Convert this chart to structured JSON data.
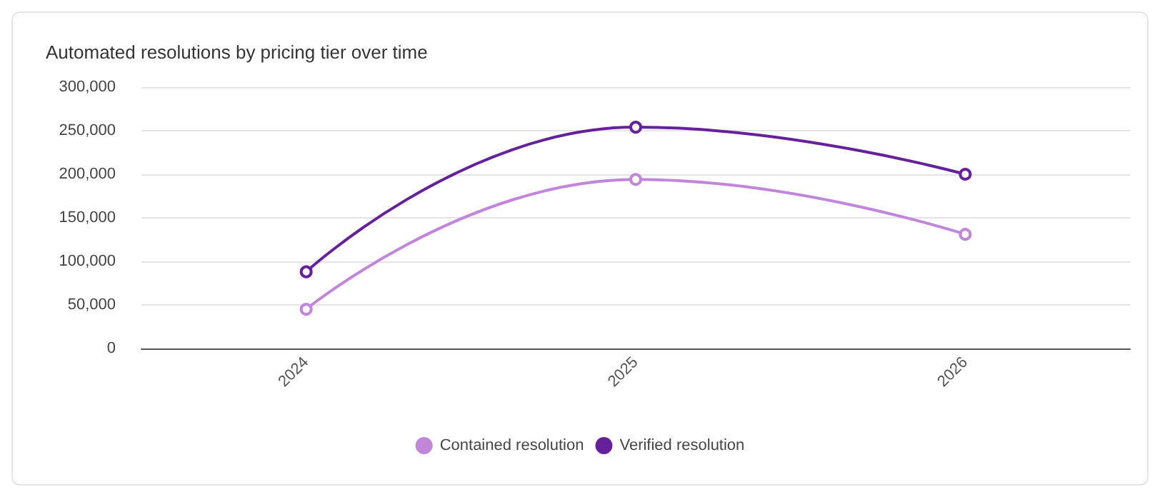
{
  "chart_data": {
    "type": "line",
    "title": "Automated resolutions by pricing tier over time",
    "categories": [
      "2024",
      "2025",
      "2026"
    ],
    "series": [
      {
        "name": "Contained resolution",
        "color": "#c285dc",
        "values": [
          45000,
          194000,
          131000
        ]
      },
      {
        "name": "Verified resolution",
        "color": "#65209a",
        "values": [
          88000,
          254000,
          200000
        ]
      }
    ],
    "ylim": [
      0,
      300000
    ],
    "yticks": [
      0,
      {
        "value": 50000,
        "label": "50,000"
      },
      {
        "value": 100000,
        "label": "100,000"
      },
      {
        "value": 150000,
        "label": "150,000"
      },
      {
        "value": 200000,
        "label": "200,000"
      },
      {
        "value": 250000,
        "label": "250,000"
      },
      {
        "value": 300000,
        "label": "300,000"
      }
    ],
    "grid": "y",
    "legend": "bottom",
    "marker": "circle",
    "line_style": "solid"
  }
}
